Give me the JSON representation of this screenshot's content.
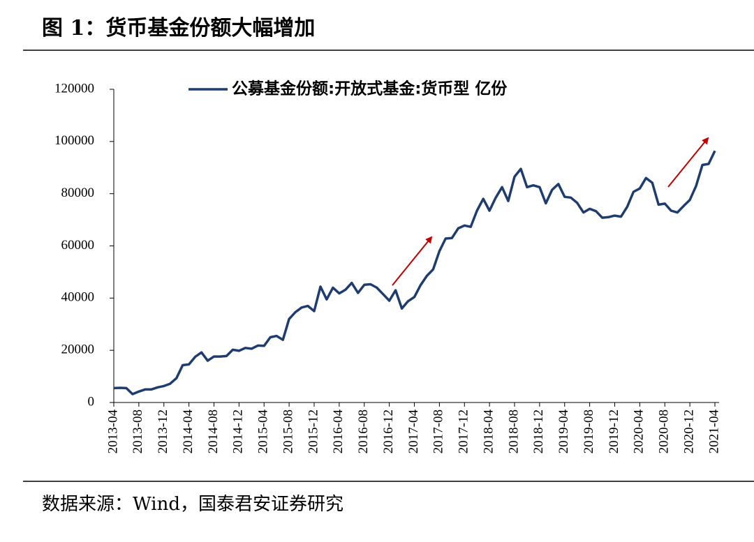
{
  "chart_data": {
    "type": "line",
    "title": "图 1：货币基金份额大幅增加",
    "source": "数据来源：Wind，国泰君安证券研究",
    "categories": [
      "2013-04",
      null,
      null,
      null,
      "2013-08",
      null,
      null,
      null,
      "2013-12",
      null,
      null,
      null,
      "2014-04",
      null,
      null,
      null,
      "2014-08",
      null,
      null,
      null,
      "2014-12",
      null,
      null,
      null,
      "2015-04",
      null,
      null,
      null,
      "2015-08",
      null,
      null,
      null,
      "2015-12",
      null,
      null,
      null,
      "2016-04",
      null,
      null,
      null,
      "2016-08",
      null,
      null,
      null,
      "2016-12",
      null,
      null,
      null,
      "2017-04",
      null,
      null,
      null,
      "2017-08",
      null,
      null,
      null,
      "2017-12",
      null,
      null,
      null,
      "2018-04",
      null,
      null,
      null,
      "2018-08",
      null,
      null,
      null,
      "2018-12",
      null,
      null,
      null,
      "2019-04",
      null,
      null,
      null,
      "2019-08",
      null,
      null,
      null,
      "2019-12",
      null,
      null,
      null,
      "2020-04",
      null,
      null,
      null,
      "2020-08",
      null,
      null,
      null,
      "2020-12",
      null,
      null,
      null,
      "2021-04"
    ],
    "series": [
      {
        "name": "公募基金份额:开放式基金:货币型 亿份",
        "color": "#1f3c6e",
        "values": [
          5500,
          5600,
          5500,
          3200,
          4200,
          5000,
          5000,
          5800,
          6300,
          7200,
          9300,
          14300,
          14600,
          17500,
          19200,
          16000,
          17600,
          17600,
          17800,
          20200,
          19800,
          20900,
          20600,
          21800,
          21700,
          25000,
          25500,
          24000,
          32000,
          34600,
          36400,
          37000,
          35000,
          44400,
          39500,
          44000,
          41800,
          43200,
          45800,
          42000,
          45100,
          45300,
          44000,
          41500,
          39000,
          43000,
          36000,
          38800,
          40400,
          45000,
          48500,
          51000,
          58000,
          62800,
          63000,
          66700,
          67800,
          67300,
          73500,
          78000,
          73500,
          78500,
          82500,
          77200,
          86500,
          89500,
          82500,
          83200,
          82500,
          76300,
          81500,
          83700,
          78800,
          78500,
          76500,
          72800,
          74200,
          73300,
          70800,
          71000,
          71600,
          71200,
          75000,
          80700,
          82000,
          86000,
          84200,
          75800,
          76200,
          73500,
          72800,
          75300,
          77600,
          83000,
          91000,
          91400,
          96400
        ]
      }
    ],
    "ylim": [
      0,
      120000
    ],
    "yticks": [
      0,
      20000,
      40000,
      60000,
      80000,
      100000,
      120000
    ],
    "grid": false,
    "legend": "top"
  }
}
